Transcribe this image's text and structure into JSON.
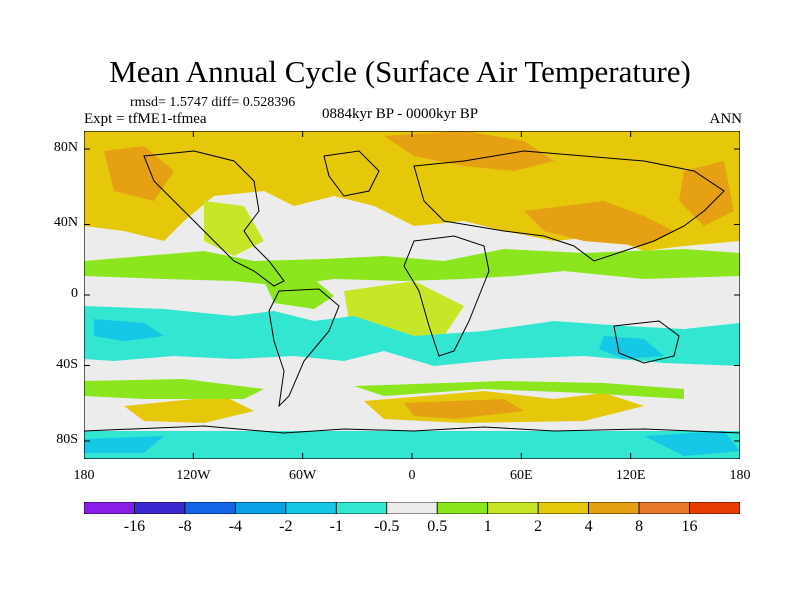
{
  "title": "Mean Annual Cycle (Surface Air Temperature)",
  "stats": "rmsd= 1.5747 diff= 0.528396",
  "experiment": "Expt = tfME1-tfmea",
  "period": "0884kyr BP - 0000kyr BP",
  "season": "ANN",
  "lat_labels": [
    "80N",
    "40N",
    "0",
    "40S",
    "80S"
  ],
  "lon_labels": [
    "180",
    "120W",
    "60W",
    "0",
    "60E",
    "120E",
    "180"
  ],
  "colorbar": {
    "colors": [
      "#8a1ee8",
      "#3c28d0",
      "#1464e6",
      "#0aa0e6",
      "#14c8e6",
      "#32e6d2",
      "#ececec",
      "#8ce61e",
      "#c8e628",
      "#e6c80a",
      "#e6a014",
      "#e67828",
      "#e63c00"
    ],
    "labels": [
      "-16",
      "-8",
      "-4",
      "-2",
      "-1",
      "-0.5",
      "0.5",
      "1",
      "2",
      "4",
      "8",
      "16"
    ]
  }
}
